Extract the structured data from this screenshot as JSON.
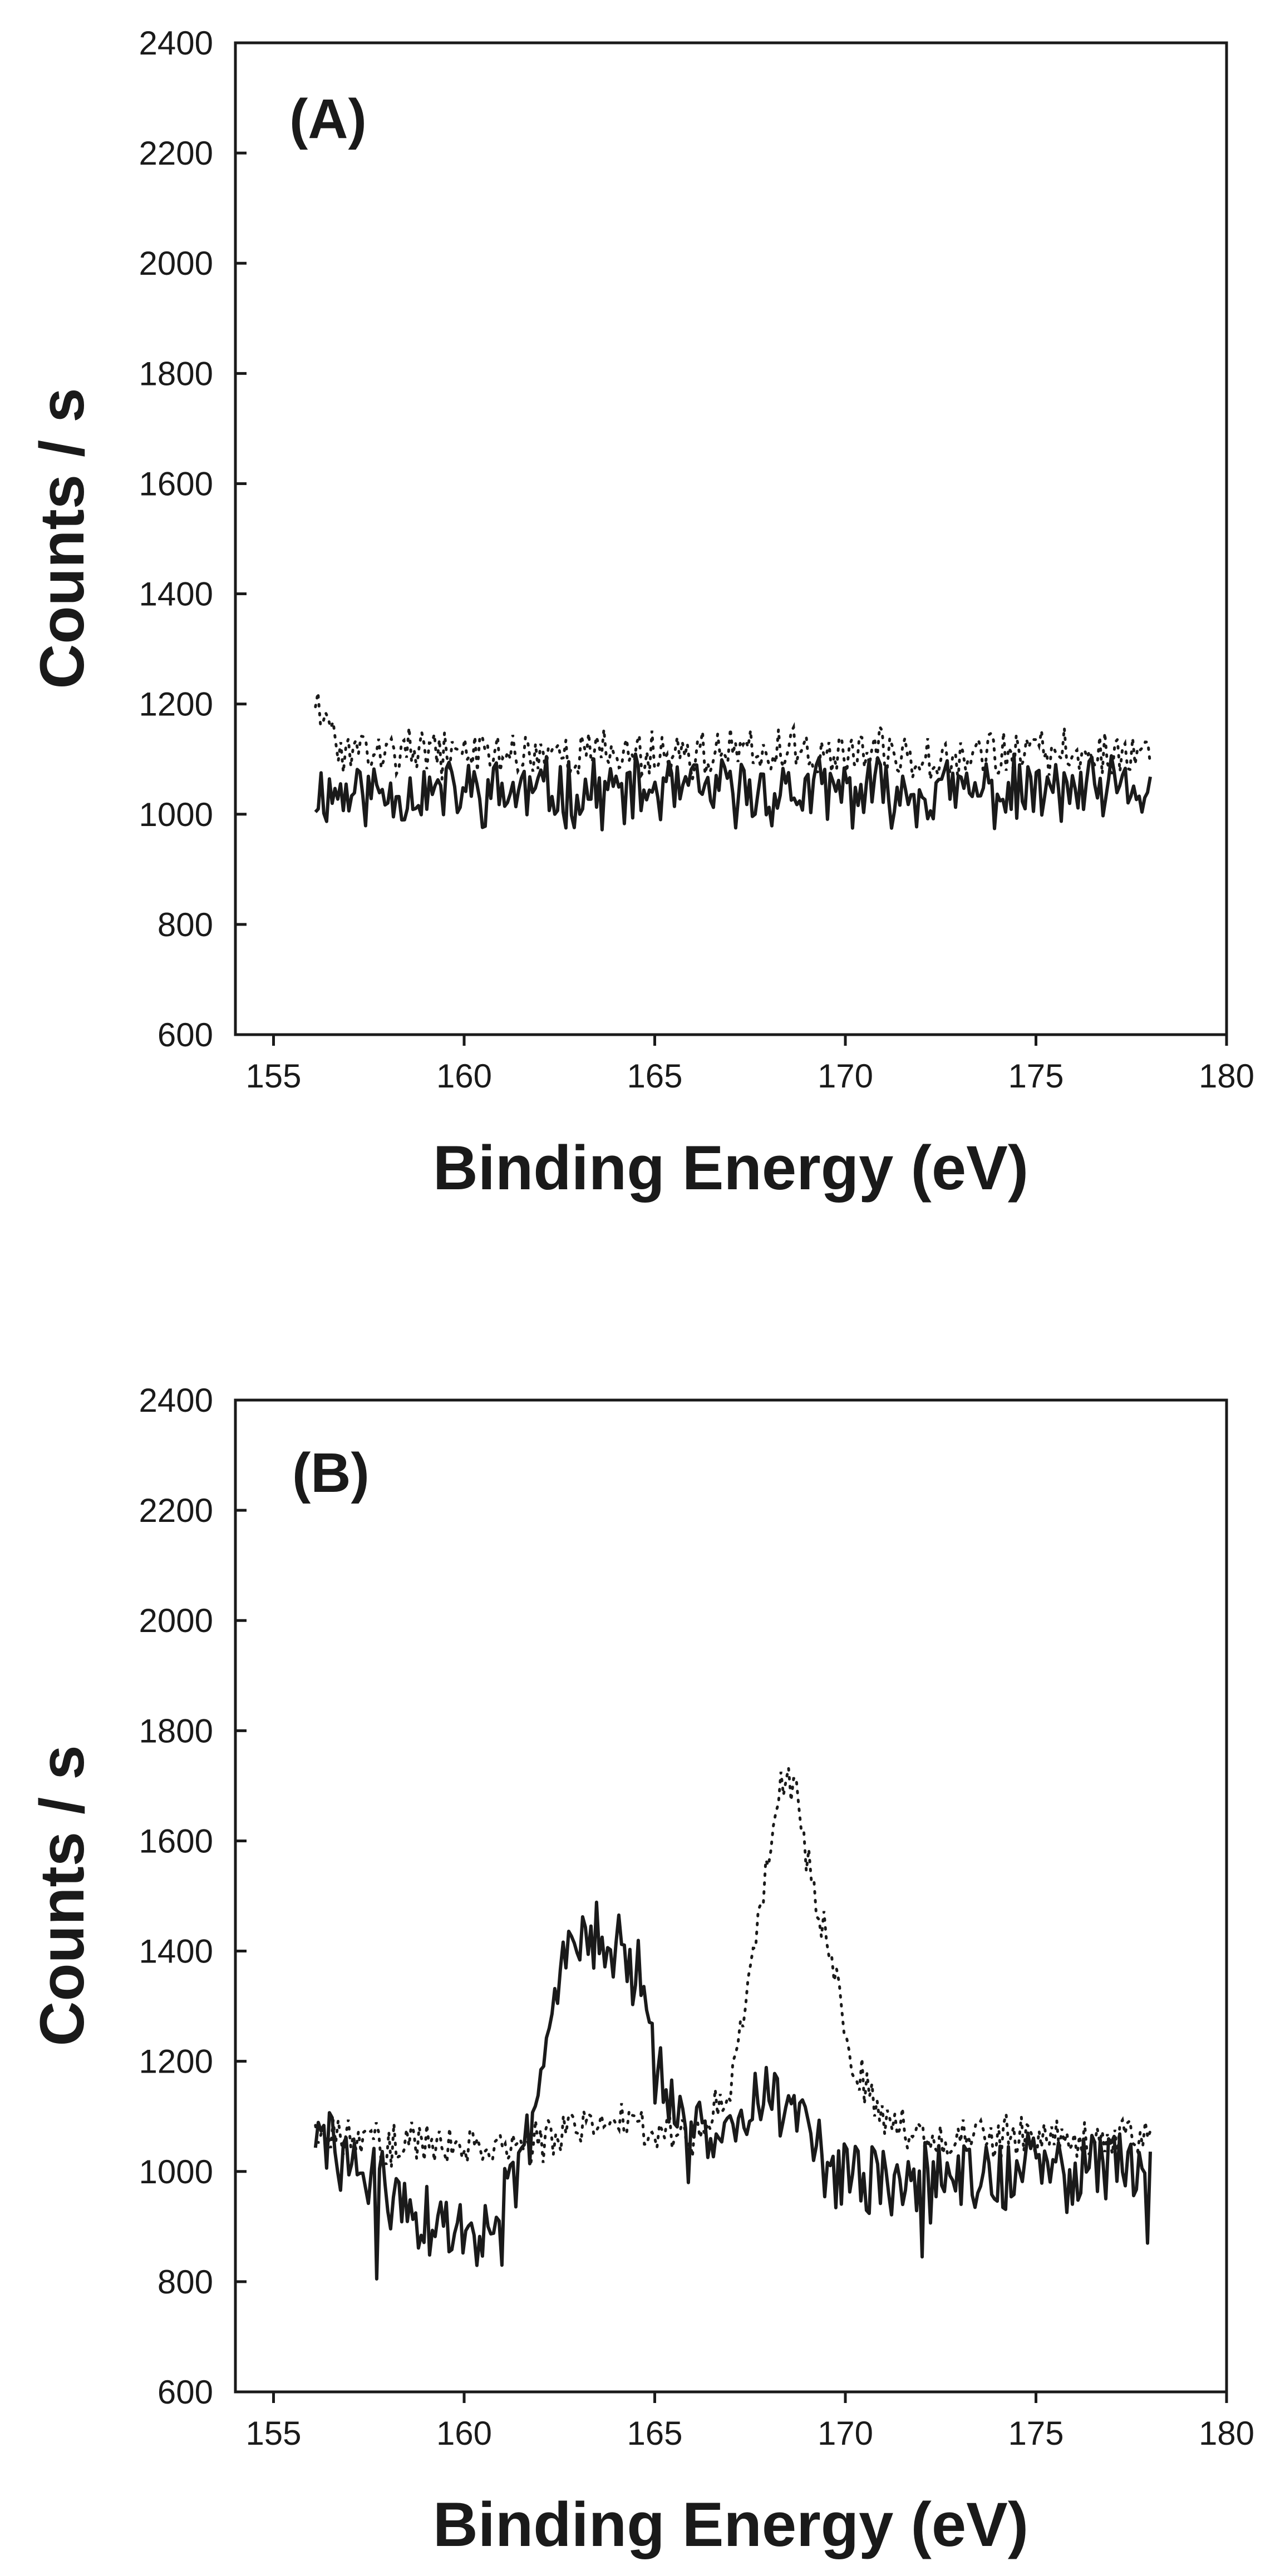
{
  "chart_data": [
    {
      "type": "line",
      "panel_label": "(A)",
      "xlabel": "Binding Energy (eV)",
      "ylabel": "Counts / s",
      "xlim": [
        154,
        180
      ],
      "ylim": [
        600,
        2400
      ],
      "xticks": [
        155,
        160,
        165,
        170,
        175,
        180
      ],
      "yticks": [
        600,
        800,
        1000,
        1200,
        1400,
        1600,
        1800,
        2000,
        2200,
        2400
      ],
      "x_start": 156.1,
      "x_end": 178.0,
      "noise_seed": 11,
      "series": [
        {
          "name": "solid",
          "style": "solid",
          "noise_amplitude": 55,
          "x": [
            156.1,
            178.0
          ],
          "y": [
            1040,
            1040
          ]
        },
        {
          "name": "dotted",
          "style": "dotted",
          "noise_amplitude": 40,
          "x": [
            156.1,
            156.3,
            156.8,
            178.0
          ],
          "y": [
            1220,
            1160,
            1110,
            1110
          ]
        }
      ]
    },
    {
      "type": "line",
      "panel_label": "(B)",
      "xlabel": "Binding Energy (eV)",
      "ylabel": "Counts / s",
      "xlim": [
        154,
        180
      ],
      "ylim": [
        600,
        2400
      ],
      "xticks": [
        155,
        160,
        165,
        170,
        175,
        180
      ],
      "yticks": [
        600,
        800,
        1000,
        1200,
        1400,
        1600,
        1800,
        2000,
        2200,
        2400
      ],
      "x_start": 156.1,
      "x_end": 178.0,
      "noise_seed": 29,
      "series": [
        {
          "name": "solid",
          "style": "solid",
          "noise_amplitude": 65,
          "x": [
            156.1,
            157.0,
            158.0,
            159.0,
            160.0,
            161.0,
            161.5,
            162.0,
            162.5,
            162.8,
            163.2,
            163.8,
            164.5,
            165.0,
            165.5,
            166.0,
            167.0,
            168.0,
            169.0,
            170.0,
            172.0,
            175.0,
            178.0
          ],
          "y": [
            1060,
            1020,
            960,
            900,
            890,
            930,
            1000,
            1150,
            1350,
            1450,
            1440,
            1400,
            1370,
            1200,
            1080,
            1050,
            1120,
            1140,
            1080,
            980,
            980,
            1000,
            1020
          ],
          "pinned_points": [
            {
              "x": 157.7,
              "y": 805
            },
            {
              "x": 161.0,
              "y": 830
            },
            {
              "x": 172.0,
              "y": 845
            },
            {
              "x": 177.9,
              "y": 870
            }
          ]
        },
        {
          "name": "dotted",
          "style": "dotted",
          "noise_amplitude": 35,
          "x": [
            156.1,
            158.0,
            162.0,
            164.0,
            166.0,
            167.0,
            167.5,
            168.0,
            168.3,
            168.7,
            169.2,
            169.7,
            170.2,
            171.0,
            172.0,
            178.0
          ],
          "y": [
            1080,
            1050,
            1050,
            1100,
            1060,
            1150,
            1350,
            1600,
            1710,
            1700,
            1500,
            1380,
            1200,
            1100,
            1060,
            1060
          ]
        }
      ]
    }
  ]
}
